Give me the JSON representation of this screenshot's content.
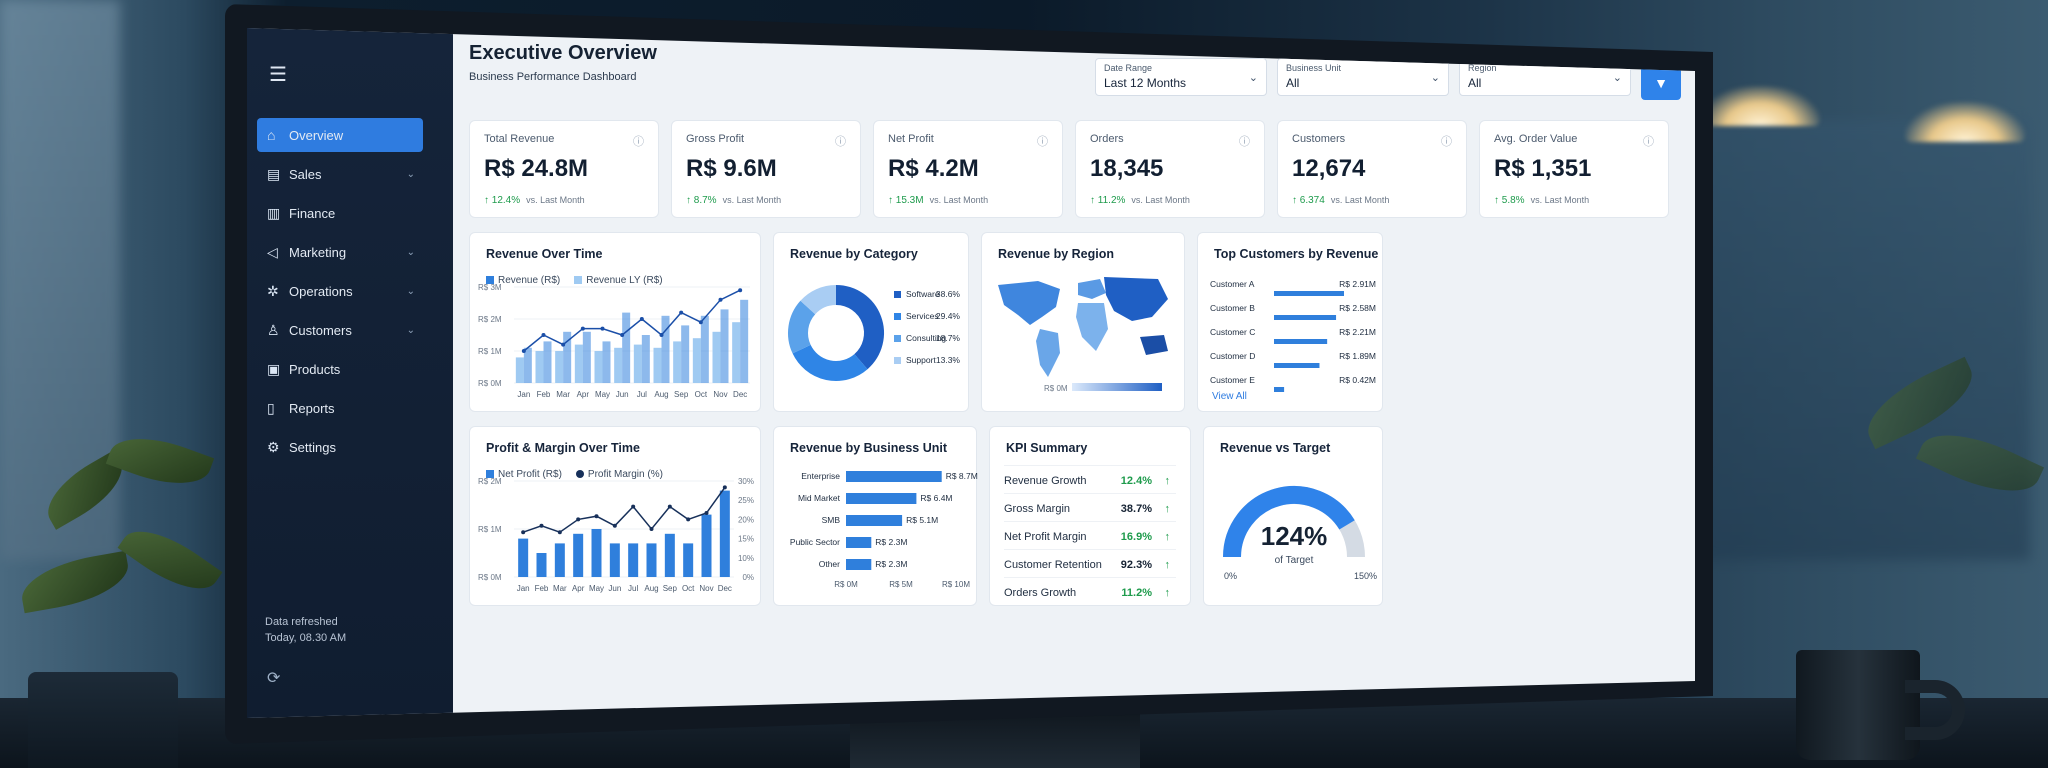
{
  "app": {
    "title": "Executive Overview",
    "subtitle": "Business Performance Dashboard",
    "menu_icon": "hamburger-icon"
  },
  "sidebar": {
    "items": [
      {
        "label": "Overview",
        "icon": "home-icon",
        "active": true,
        "has_children": false
      },
      {
        "label": "Sales",
        "icon": "chart-icon",
        "active": false,
        "has_children": true
      },
      {
        "label": "Finance",
        "icon": "bank-icon",
        "active": false,
        "has_children": false
      },
      {
        "label": "Marketing",
        "icon": "megaphone-icon",
        "active": false,
        "has_children": true
      },
      {
        "label": "Operations",
        "icon": "cog-icon",
        "active": false,
        "has_children": true
      },
      {
        "label": "Customers",
        "icon": "user-icon",
        "active": false,
        "has_children": true
      },
      {
        "label": "Products",
        "icon": "box-icon",
        "active": false,
        "has_children": false
      },
      {
        "label": "Reports",
        "icon": "document-icon",
        "active": false,
        "has_children": false
      },
      {
        "label": "Settings",
        "icon": "gear-icon",
        "active": false,
        "has_children": false
      }
    ],
    "refresh_label": "Data refreshed",
    "refresh_time": "Today, 08.30 AM"
  },
  "filters": {
    "date_range": {
      "label": "Date Range",
      "value": "Last 12 Months"
    },
    "business_unit": {
      "label": "Business Unit",
      "value": "All"
    },
    "region": {
      "label": "Region",
      "value": "All"
    },
    "filter_icon": "filter-icon"
  },
  "kpis": [
    {
      "label": "Total Revenue",
      "value": "R$ 24.8M",
      "delta": "↑ 12.4%",
      "vs": "vs. Last Month"
    },
    {
      "label": "Gross Profit",
      "value": "R$ 9.6M",
      "delta": "↑ 8.7%",
      "vs": "vs. Last Month"
    },
    {
      "label": "Net Profit",
      "value": "R$ 4.2M",
      "delta": "↑ 15.3M",
      "vs": "vs. Last Month"
    },
    {
      "label": "Orders",
      "value": "18,345",
      "delta": "↑ 11.2%",
      "vs": "vs. Last Month"
    },
    {
      "label": "Customers",
      "value": "12,674",
      "delta": "↑ 6.374",
      "vs": "vs. Last Month"
    },
    {
      "label": "Avg. Order Value",
      "value": "R$ 1,351",
      "delta": "↑ 5.8%",
      "vs": "vs. Last Month"
    }
  ],
  "revenue_over_time": {
    "title": "Revenue Over Time",
    "legend": [
      "Revenue (R$)",
      "Revenue LY (R$)"
    ],
    "colors": {
      "revenue": "#2f7fdc",
      "revenue_ly": "#9fcaf2",
      "line": "#1b4fa8"
    }
  },
  "revenue_by_category": {
    "title": "Revenue by Category",
    "items": [
      {
        "label": "Software",
        "value": "38.6%",
        "color": "#1f5fc4"
      },
      {
        "label": "Services",
        "value": "29.4%",
        "color": "#2f85e6"
      },
      {
        "label": "Consulting",
        "value": "18.7%",
        "color": "#5ba2ea"
      },
      {
        "label": "Support",
        "value": "13.3%",
        "color": "#a9cdf3"
      }
    ]
  },
  "revenue_by_region": {
    "title": "Revenue by Region",
    "scale_min": "R$ 0M"
  },
  "top_customers": {
    "title": "Top Customers by Revenue",
    "items": [
      {
        "name": "Customer A",
        "value": "R$ 2.91M"
      },
      {
        "name": "Customer B",
        "value": "R$ 2.58M"
      },
      {
        "name": "Customer C",
        "value": "R$ 2.21M"
      },
      {
        "name": "Customer D",
        "value": "R$ 1.89M"
      },
      {
        "name": "Customer E",
        "value": "R$ 0.42M"
      }
    ],
    "view_all": "View All"
  },
  "profit_margin": {
    "title": "Profit & Margin Over Time",
    "legend": [
      "Net Profit (R$)",
      "Profit Margin (%)"
    ]
  },
  "revenue_by_bu": {
    "title": "Revenue by Business Unit",
    "items": [
      {
        "name": "Enterprise",
        "value": "R$ 8.7M"
      },
      {
        "name": "Mid Market",
        "value": "R$ 6.4M"
      },
      {
        "name": "SMB",
        "value": "R$ 5.1M"
      },
      {
        "name": "Public Sector",
        "value": "R$ 2.3M"
      },
      {
        "name": "Other",
        "value": "R$ 2.3M"
      }
    ],
    "axis": [
      "R$ 0M",
      "R$ 5M",
      "R$ 10M"
    ]
  },
  "kpi_summary": {
    "title": "KPI Summary",
    "rows": [
      {
        "label": "Revenue Growth",
        "value": "12.4%",
        "positive": true
      },
      {
        "label": "Gross Margin",
        "value": "38.7%",
        "positive": false
      },
      {
        "label": "Net Profit Margin",
        "value": "16.9%",
        "positive": true
      },
      {
        "label": "Customer Retention",
        "value": "92.3%",
        "positive": false
      },
      {
        "label": "Orders Growth",
        "value": "11.2%",
        "positive": true
      }
    ]
  },
  "revenue_vs_target": {
    "title": "Revenue vs Target",
    "value": "124%",
    "caption": "of Target",
    "min": "0%",
    "max": "150%"
  },
  "chart_data": [
    {
      "type": "bar",
      "title": "Revenue Over Time",
      "categories": [
        "Jan",
        "Feb",
        "Mar",
        "Apr",
        "May",
        "Jun",
        "Jul",
        "Aug",
        "Sep",
        "Oct",
        "Nov",
        "Dec"
      ],
      "series": [
        {
          "name": "Revenue (R$)",
          "values": [
            1.1,
            1.3,
            1.6,
            1.6,
            1.3,
            2.2,
            1.5,
            2.1,
            1.8,
            2.1,
            2.3,
            2.6
          ]
        },
        {
          "name": "Revenue LY (R$)",
          "values": [
            0.8,
            1.0,
            1.0,
            1.2,
            1.0,
            1.1,
            1.2,
            1.1,
            1.3,
            1.4,
            1.6,
            1.9
          ]
        }
      ],
      "line_values": [
        1.0,
        1.5,
        1.2,
        1.7,
        1.7,
        1.5,
        2.0,
        1.5,
        2.2,
        1.9,
        2.6,
        2.9
      ],
      "yticks": [
        "R$ 0M",
        "R$ 1M",
        "R$ 2M",
        "R$ 3M"
      ],
      "ylim": [
        0,
        3
      ]
    },
    {
      "type": "pie",
      "title": "Revenue by Category",
      "categories": [
        "Software",
        "Services",
        "Consulting",
        "Support"
      ],
      "values": [
        38.6,
        29.4,
        18.7,
        13.3
      ]
    },
    {
      "type": "bar",
      "title": "Profit & Margin Over Time",
      "categories": [
        "Jan",
        "Feb",
        "Mar",
        "Apr",
        "May",
        "Jun",
        "Jul",
        "Aug",
        "Sep",
        "Oct",
        "Nov",
        "Dec"
      ],
      "series": [
        {
          "name": "Net Profit (R$)",
          "values": [
            0.8,
            0.5,
            0.7,
            0.9,
            1.0,
            0.7,
            0.7,
            0.7,
            0.9,
            0.7,
            1.3,
            1.8
          ]
        },
        {
          "name": "Profit Margin (%)",
          "values": [
            14,
            16,
            14,
            18,
            19,
            16,
            22,
            15,
            22,
            18,
            20,
            28
          ]
        }
      ],
      "yticks": [
        "R$ 0M",
        "R$ 1M",
        "R$ 2M"
      ],
      "y2ticks": [
        "0%",
        "10%",
        "15%",
        "20%",
        "25%",
        "30%"
      ],
      "ylim": [
        0,
        2
      ]
    },
    {
      "type": "bar",
      "title": "Revenue by Business Unit",
      "categories": [
        "Enterprise",
        "Mid Market",
        "SMB",
        "Public Sector",
        "Other"
      ],
      "values": [
        8.7,
        6.4,
        5.1,
        2.3,
        2.3
      ],
      "xlim": [
        0,
        10
      ]
    },
    {
      "type": "bar",
      "title": "Top Customers by Revenue",
      "categories": [
        "Customer A",
        "Customer B",
        "Customer C",
        "Customer D",
        "Customer E"
      ],
      "values": [
        2.91,
        2.58,
        2.21,
        1.89,
        0.42
      ]
    }
  ]
}
